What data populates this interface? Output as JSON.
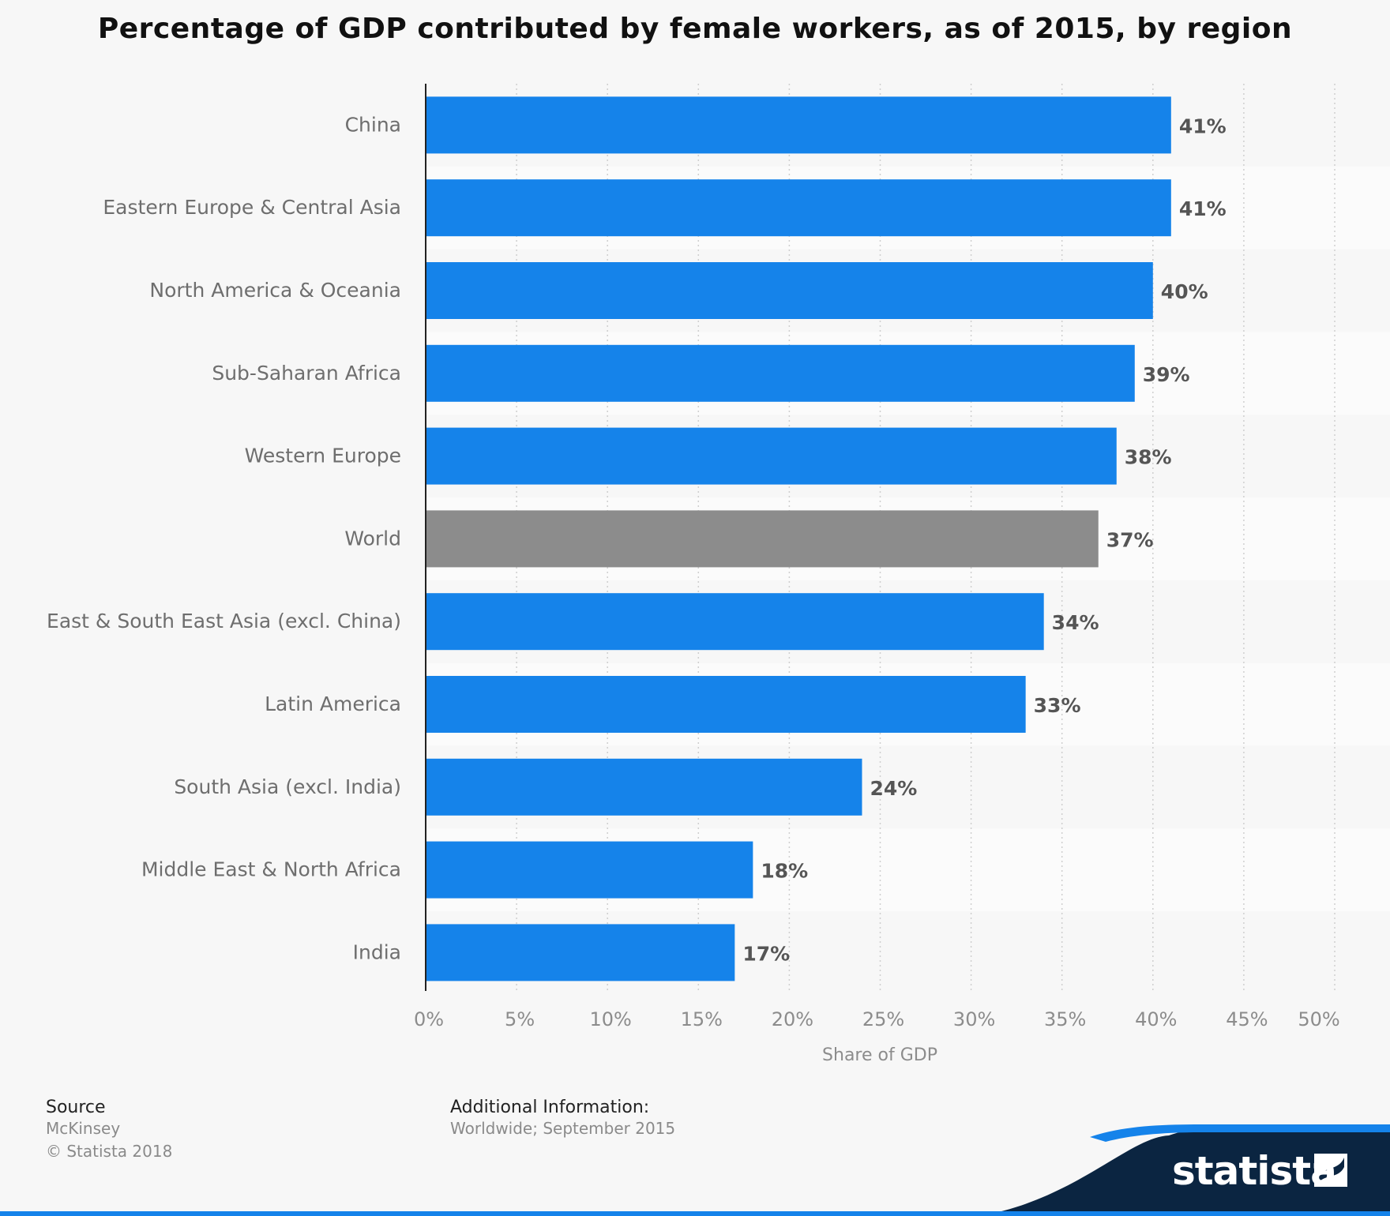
{
  "chart_data": {
    "type": "bar",
    "orientation": "horizontal",
    "title": "Percentage of GDP contributed by female workers, as of 2015, by region",
    "xlabel": "Share of GDP",
    "xlim": [
      0,
      50
    ],
    "x_ticks": [
      "0%",
      "5%",
      "10%",
      "15%",
      "20%",
      "25%",
      "30%",
      "35%",
      "40%",
      "45%",
      "50%"
    ],
    "categories": [
      "China",
      "Eastern Europe & Central Asia",
      "North America & Oceania",
      "Sub-Saharan Africa",
      "Western Europe",
      "World",
      "East & South East Asia (excl. China)",
      "Latin America",
      "South Asia (excl. India)",
      "Middle East & North Africa",
      "India"
    ],
    "values": [
      41,
      41,
      40,
      39,
      38,
      37,
      34,
      33,
      24,
      18,
      17
    ],
    "value_labels": [
      "41%",
      "41%",
      "40%",
      "39%",
      "38%",
      "37%",
      "34%",
      "33%",
      "24%",
      "18%",
      "17%"
    ],
    "highlight_category": "World",
    "grid": "vertical dotted",
    "colors": {
      "bar": "#1583ea",
      "highlight": "#8c8c8c"
    }
  },
  "footer": {
    "source_heading": "Source",
    "source_name": "McKinsey",
    "copyright": "© Statista 2018",
    "info_heading": "Additional Information:",
    "info_text": "Worldwide; September 2015"
  },
  "brand": {
    "name": "statista",
    "accent": "#1583ea",
    "dark": "#0b2541"
  }
}
